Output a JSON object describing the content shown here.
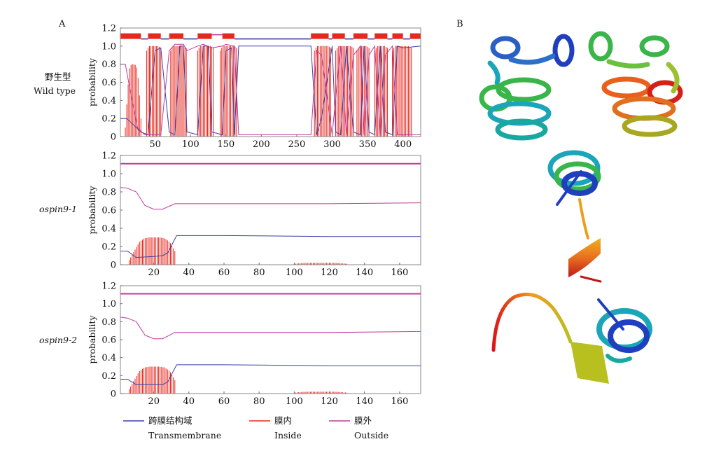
{
  "figure": {
    "panel_a": "A",
    "panel_b": "B"
  },
  "legend": [
    {
      "cn": "跨膜结构域",
      "en": "Transmembrane",
      "color": "#3a3fa8"
    },
    {
      "cn": "膜内",
      "en": "Inside",
      "color": "#e8281e"
    },
    {
      "cn": "膜外",
      "en": "Outside",
      "color": "#c0389a"
    }
  ],
  "chart_data": [
    {
      "type": "line",
      "row_label_cn": "野生型",
      "row_label_en": "Wild type",
      "ylabel": "probability",
      "xlim": [
        1,
        425
      ],
      "ylim": [
        0,
        1.2
      ],
      "xticks": [
        50,
        100,
        150,
        200,
        250,
        300,
        350,
        400
      ],
      "yticks": [
        "0",
        "0.2",
        "0.4",
        "0.6",
        "0.8",
        "1.0",
        "1.2"
      ],
      "series": [
        {
          "key": "transmembrane",
          "points": [
            [
              1,
              0.2
            ],
            [
              10,
              0.2
            ],
            [
              30,
              0.05
            ],
            [
              40,
              0.02
            ],
            [
              50,
              0.95
            ],
            [
              58,
              0.98
            ],
            [
              70,
              0.05
            ],
            [
              78,
              0.02
            ],
            [
              85,
              1.0
            ],
            [
              90,
              1.0
            ],
            [
              95,
              0.05
            ],
            [
              110,
              0.02
            ],
            [
              118,
              1.0
            ],
            [
              125,
              1.0
            ],
            [
              130,
              0.05
            ],
            [
              145,
              0.02
            ],
            [
              150,
              0.95
            ],
            [
              158,
              0.98
            ],
            [
              162,
              0.02
            ],
            [
              168,
              1.0
            ],
            [
              270,
              1.0
            ],
            [
              278,
              0.02
            ],
            [
              285,
              0.2
            ],
            [
              300,
              1.0
            ],
            [
              305,
              0.05
            ],
            [
              312,
              0.02
            ],
            [
              320,
              1.0
            ],
            [
              330,
              0.05
            ],
            [
              340,
              0.02
            ],
            [
              345,
              1.0
            ],
            [
              352,
              0.05
            ],
            [
              360,
              0.02
            ],
            [
              368,
              1.0
            ],
            [
              375,
              0.05
            ],
            [
              385,
              0.02
            ],
            [
              392,
              1.0
            ],
            [
              400,
              0.98
            ],
            [
              425,
              1.0
            ]
          ]
        },
        {
          "key": "outside",
          "points": [
            [
              1,
              0.8
            ],
            [
              8,
              0.8
            ],
            [
              15,
              0.5
            ],
            [
              25,
              0.1
            ],
            [
              35,
              0.02
            ],
            [
              50,
              0.02
            ],
            [
              58,
              0.02
            ],
            [
              70,
              0.95
            ],
            [
              78,
              1.02
            ],
            [
              90,
              1.02
            ],
            [
              95,
              0.95
            ],
            [
              110,
              1.0
            ],
            [
              118,
              1.02
            ],
            [
              130,
              0.98
            ],
            [
              145,
              1.0
            ],
            [
              150,
              1.02
            ],
            [
              162,
              1.0
            ],
            [
              168,
              0.02
            ],
            [
              270,
              0.02
            ],
            [
              278,
              0.95
            ],
            [
              285,
              0.9
            ],
            [
              300,
              0.02
            ],
            [
              312,
              1.0
            ],
            [
              320,
              0.02
            ],
            [
              330,
              0.9
            ],
            [
              340,
              1.0
            ],
            [
              345,
              0.02
            ],
            [
              352,
              0.9
            ],
            [
              360,
              1.0
            ],
            [
              368,
              0.02
            ],
            [
              375,
              0.9
            ],
            [
              385,
              1.0
            ],
            [
              392,
              0.02
            ],
            [
              425,
              0.02
            ]
          ]
        }
      ],
      "inside_bars": [
        {
          "from": 8,
          "to": 30,
          "values": [
            0.1,
            0.5,
            0.78,
            0.8,
            0.8,
            0.78,
            0.6,
            0.2
          ]
        },
        {
          "from": 38,
          "to": 58,
          "values": [
            0.95,
            1.0,
            1.0,
            1.0,
            1.0,
            1.0,
            0.98
          ]
        },
        {
          "from": 72,
          "to": 94,
          "values": [
            0.95,
            1.0,
            1.0,
            1.0,
            1.0,
            1.0,
            1.0,
            0.98
          ]
        },
        {
          "from": 110,
          "to": 132,
          "values": [
            0.95,
            1.0,
            1.0,
            1.0,
            1.0,
            1.0,
            1.0,
            0.98
          ]
        },
        {
          "from": 142,
          "to": 165,
          "values": [
            0.95,
            1.0,
            1.0,
            1.0,
            1.0,
            1.0,
            1.0,
            0.98
          ]
        },
        {
          "from": 275,
          "to": 298,
          "values": [
            0.95,
            1.0,
            1.0,
            1.0,
            1.0,
            1.0,
            1.0,
            0.98
          ]
        },
        {
          "from": 305,
          "to": 330,
          "values": [
            0.95,
            1.0,
            1.0,
            1.0,
            1.0,
            1.0,
            1.0,
            0.98
          ]
        },
        {
          "from": 335,
          "to": 352,
          "values": [
            0.95,
            1.0,
            1.0,
            1.0,
            1.0,
            0.98
          ]
        },
        {
          "from": 360,
          "to": 378,
          "values": [
            0.95,
            1.0,
            1.0,
            1.0,
            1.0,
            0.98
          ]
        },
        {
          "from": 385,
          "to": 412,
          "values": [
            0.95,
            1.0,
            1.0,
            1.0,
            1.0,
            1.0,
            1.0,
            0.98
          ]
        }
      ],
      "topology_bar": [
        {
          "from": 1,
          "to": 30,
          "kind": "inside"
        },
        {
          "from": 30,
          "to": 40,
          "kind": "transmembrane"
        },
        {
          "from": 40,
          "to": 58,
          "kind": "inside"
        },
        {
          "from": 58,
          "to": 70,
          "kind": "transmembrane"
        },
        {
          "from": 70,
          "to": 90,
          "kind": "inside"
        },
        {
          "from": 90,
          "to": 110,
          "kind": "transmembrane"
        },
        {
          "from": 110,
          "to": 130,
          "kind": "inside"
        },
        {
          "from": 130,
          "to": 145,
          "kind": "outside"
        },
        {
          "from": 145,
          "to": 162,
          "kind": "inside"
        },
        {
          "from": 162,
          "to": 270,
          "kind": "transmembrane"
        },
        {
          "from": 270,
          "to": 295,
          "kind": "inside"
        },
        {
          "from": 295,
          "to": 300,
          "kind": "transmembrane"
        },
        {
          "from": 300,
          "to": 318,
          "kind": "inside"
        },
        {
          "from": 318,
          "to": 330,
          "kind": "transmembrane"
        },
        {
          "from": 330,
          "to": 350,
          "kind": "inside"
        },
        {
          "from": 350,
          "to": 360,
          "kind": "transmembrane"
        },
        {
          "from": 360,
          "to": 378,
          "kind": "inside"
        },
        {
          "from": 378,
          "to": 385,
          "kind": "transmembrane"
        },
        {
          "from": 385,
          "to": 400,
          "kind": "inside"
        },
        {
          "from": 400,
          "to": 410,
          "kind": "transmembrane"
        },
        {
          "from": 410,
          "to": 425,
          "kind": "inside"
        }
      ]
    },
    {
      "type": "line",
      "row_label_en": "ospin9-1",
      "ylabel": "probability",
      "xlim": [
        1,
        172
      ],
      "ylim": [
        0,
        1.2
      ],
      "xticks": [
        20,
        40,
        60,
        80,
        100,
        120,
        140,
        160
      ],
      "yticks": [
        "0",
        "0.2",
        "0.4",
        "0.6",
        "0.8",
        "1.0",
        "1.2"
      ],
      "series": [
        {
          "key": "outside",
          "points": [
            [
              1,
              0.85
            ],
            [
              5,
              0.84
            ],
            [
              10,
              0.8
            ],
            [
              15,
              0.65
            ],
            [
              20,
              0.61
            ],
            [
              25,
              0.61
            ],
            [
              32,
              0.67
            ],
            [
              60,
              0.67
            ],
            [
              120,
              0.67
            ],
            [
              172,
              0.68
            ]
          ]
        },
        {
          "key": "transmembrane",
          "points": [
            [
              1,
              0.15
            ],
            [
              5,
              0.15
            ],
            [
              10,
              0.08
            ],
            [
              20,
              0.09
            ],
            [
              25,
              0.1
            ],
            [
              28,
              0.13
            ],
            [
              33,
              0.32
            ],
            [
              60,
              0.32
            ],
            [
              120,
              0.31
            ],
            [
              172,
              0.31
            ]
          ]
        },
        {
          "key": "topline",
          "points": [
            [
              1,
              1.11
            ],
            [
              172,
              1.11
            ]
          ]
        }
      ],
      "inside_bars": [
        {
          "from": 6,
          "to": 32,
          "values": [
            0.05,
            0.15,
            0.25,
            0.29,
            0.3,
            0.3,
            0.3,
            0.29,
            0.25,
            0.15
          ]
        },
        {
          "from": 100,
          "to": 130,
          "values": [
            0.01,
            0.02,
            0.02,
            0.02,
            0.02,
            0.01
          ]
        }
      ]
    },
    {
      "type": "line",
      "row_label_en": "ospin9-2",
      "ylabel": "probability",
      "xlim": [
        1,
        172
      ],
      "ylim": [
        0,
        1.2
      ],
      "xticks": [
        20,
        40,
        60,
        80,
        100,
        120,
        140,
        160
      ],
      "yticks": [
        "0",
        "0.2",
        "0.4",
        "0.6",
        "0.8",
        "1.0",
        "1.2"
      ],
      "series": [
        {
          "key": "outside",
          "points": [
            [
              1,
              0.85
            ],
            [
              5,
              0.84
            ],
            [
              10,
              0.8
            ],
            [
              15,
              0.65
            ],
            [
              20,
              0.61
            ],
            [
              25,
              0.61
            ],
            [
              32,
              0.68
            ],
            [
              60,
              0.68
            ],
            [
              120,
              0.68
            ],
            [
              172,
              0.69
            ]
          ]
        },
        {
          "key": "transmembrane",
          "points": [
            [
              1,
              0.16
            ],
            [
              5,
              0.16
            ],
            [
              10,
              0.1
            ],
            [
              20,
              0.1
            ],
            [
              25,
              0.1
            ],
            [
              28,
              0.13
            ],
            [
              33,
              0.32
            ],
            [
              60,
              0.32
            ],
            [
              120,
              0.31
            ],
            [
              172,
              0.31
            ]
          ]
        },
        {
          "key": "topline",
          "points": [
            [
              1,
              1.11
            ],
            [
              172,
              1.11
            ]
          ]
        }
      ],
      "inside_bars": [
        {
          "from": 6,
          "to": 32,
          "values": [
            0.05,
            0.15,
            0.25,
            0.29,
            0.3,
            0.3,
            0.3,
            0.29,
            0.25,
            0.15
          ]
        },
        {
          "from": 100,
          "to": 130,
          "values": [
            0.01,
            0.02,
            0.02,
            0.02,
            0.02,
            0.01
          ]
        }
      ]
    }
  ],
  "structures": [
    {
      "name": "wild-type-structure"
    },
    {
      "name": "ospin9-1-structure"
    },
    {
      "name": "ospin9-2-structure"
    }
  ]
}
